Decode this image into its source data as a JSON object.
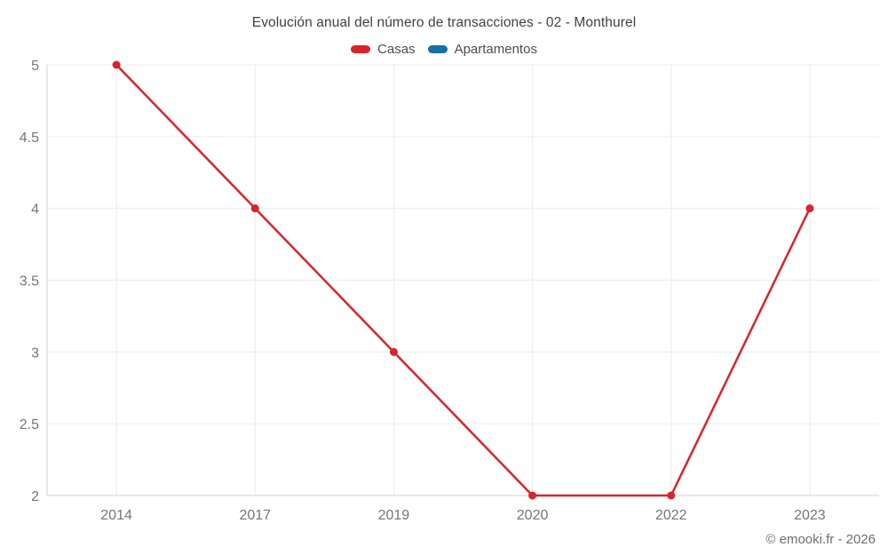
{
  "title": "Evolución anual del número de transacciones - 02 - Monthurel",
  "legend": [
    {
      "label": "Casas",
      "color": "#d9242c"
    },
    {
      "label": "Apartamentos",
      "color": "#1272a3"
    }
  ],
  "footer": "© emooki.fr - 2026",
  "chart_data": {
    "type": "line",
    "title": "Evolución anual del número de transacciones - 02 - Monthurel",
    "categories": [
      "2014",
      "2017",
      "2019",
      "2020",
      "2022",
      "2023"
    ],
    "series": [
      {
        "name": "Casas",
        "color": "#d9242c",
        "values": [
          5,
          4,
          3,
          2,
          2,
          4
        ]
      },
      {
        "name": "Apartamentos",
        "color": "#1272a3",
        "values": []
      }
    ],
    "xlabel": "",
    "ylabel": "",
    "ylim": [
      2,
      5
    ],
    "yticks": [
      2,
      2.5,
      3,
      3.5,
      4,
      4.5,
      5
    ],
    "grid": true,
    "legend_position": "top"
  }
}
